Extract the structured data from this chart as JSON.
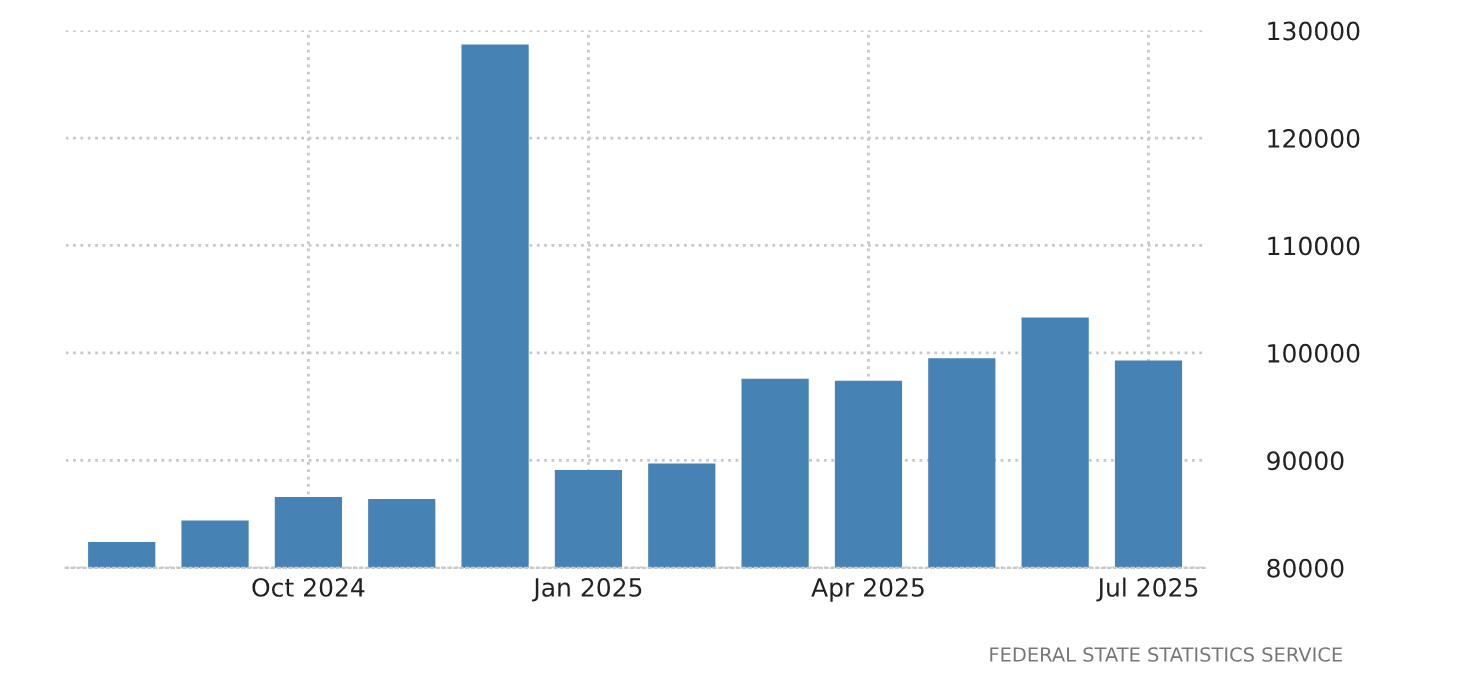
{
  "chart_data": {
    "type": "bar",
    "categories": [
      null,
      null,
      "Oct 2024",
      null,
      null,
      "Jan 2025",
      null,
      null,
      "Apr 2025",
      null,
      null,
      "Jul 2025"
    ],
    "values": [
      82400,
      84400,
      86600,
      86400,
      128700,
      89100,
      89700,
      97600,
      97400,
      99500,
      103300,
      99300
    ],
    "color": "#4682b4",
    "ylim": [
      80000,
      130000
    ],
    "yticks": [
      80000,
      90000,
      100000,
      110000,
      120000,
      130000
    ],
    "grid": true,
    "annotations": [
      "FEDERAL STATE STATISTICS SERVICE"
    ]
  }
}
